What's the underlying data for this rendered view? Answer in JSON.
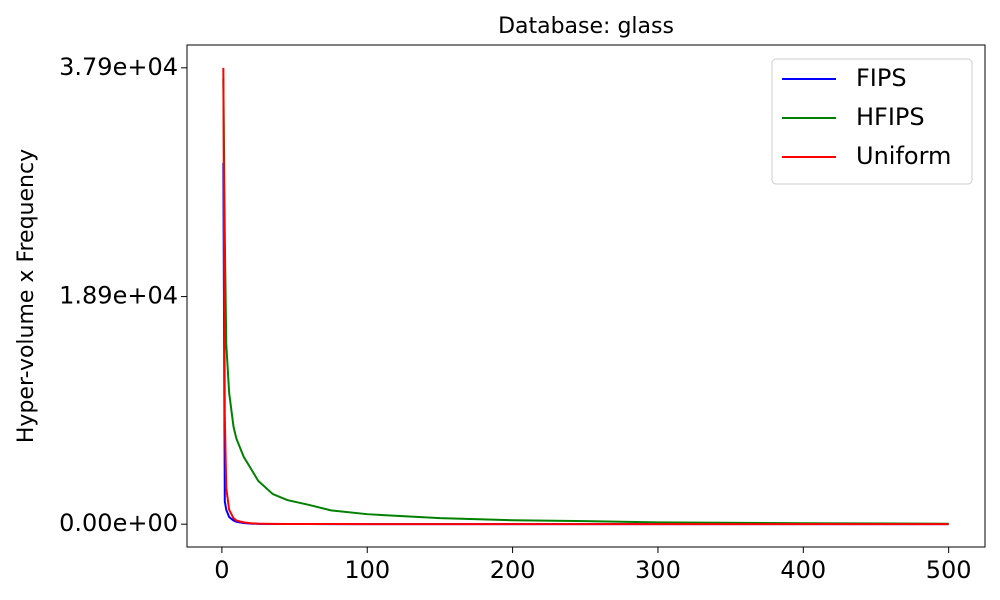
{
  "chart_data": {
    "type": "line",
    "title": "Database: glass",
    "ylabel": "Hyper-volume x Frequency",
    "x": [
      1,
      2,
      3,
      5,
      8,
      10,
      15,
      20,
      25,
      35,
      45,
      60,
      75,
      100,
      150,
      200,
      250,
      300,
      400,
      500
    ],
    "series": [
      {
        "name": "FIPS",
        "color": "#0000ff",
        "values": [
          30000,
          1900,
          1200,
          600,
          300,
          200,
          100,
          50,
          30,
          20,
          15,
          10,
          8,
          6,
          5,
          4,
          3,
          3,
          2,
          2
        ]
      },
      {
        "name": "HFIPS",
        "color": "#008000",
        "values": [
          37000,
          24000,
          15000,
          10900,
          8100,
          7100,
          5600,
          4600,
          3600,
          2500,
          2000,
          1600,
          1150,
          830,
          500,
          330,
          250,
          150,
          80,
          40
        ]
      },
      {
        "name": "Uniform",
        "color": "#ff0000",
        "values": [
          37900,
          9000,
          3000,
          1200,
          500,
          300,
          150,
          80,
          50,
          30,
          20,
          15,
          10,
          8,
          6,
          5,
          4,
          3,
          2,
          2
        ]
      }
    ],
    "xlim": [
      -24,
      525
    ],
    "xticks": [
      0,
      100,
      200,
      300,
      400,
      500
    ],
    "ylim": [
      -1895,
      39795
    ],
    "yticks": [
      {
        "value": 0,
        "label": "0.00e+00"
      },
      {
        "value": 18900,
        "label": "1.89e+04"
      },
      {
        "value": 37900,
        "label": "3.79e+04"
      }
    ],
    "legend": "upper right"
  }
}
